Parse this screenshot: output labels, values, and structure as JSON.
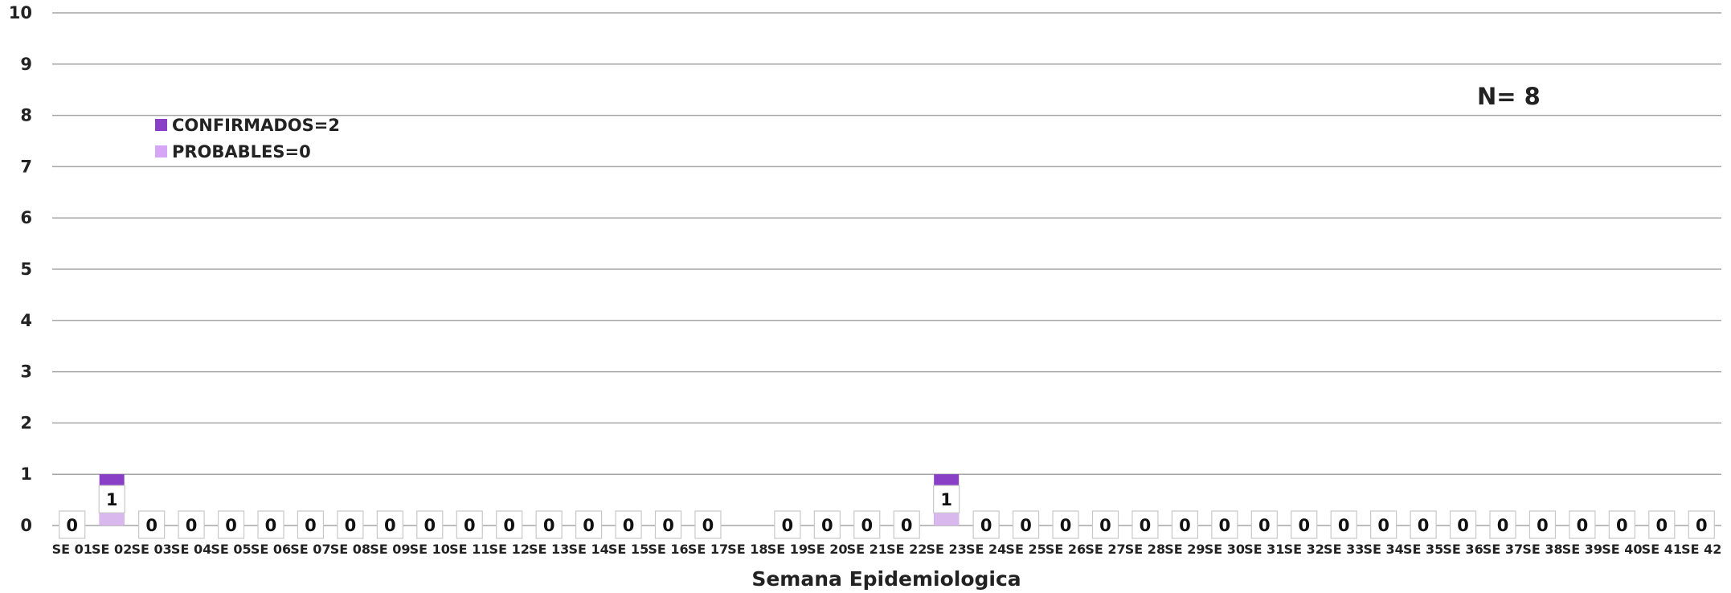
{
  "chart_data": {
    "type": "bar",
    "stacked": true,
    "title": "",
    "xlabel": "Semana Epidemiologica",
    "ylabel": "",
    "ylim": [
      0,
      10
    ],
    "grid": true,
    "legend_position": "top-left",
    "categories": [
      "SE 01",
      "SE 02",
      "SE 03",
      "SE 04",
      "SE 05",
      "SE 06",
      "SE 07",
      "SE 08",
      "SE 09",
      "SE 10",
      "SE 11",
      "SE 12",
      "SE 13",
      "SE 14",
      "SE 15",
      "SE 16",
      "SE 17",
      "SE 18",
      "SE 19",
      "SE 20",
      "SE 21",
      "SE 22",
      "SE 23",
      "SE 24",
      "SE 25",
      "SE 26",
      "SE 27",
      "SE 28",
      "SE 29",
      "SE 30",
      "SE 31",
      "SE 32",
      "SE 33",
      "SE 34",
      "SE 35",
      "SE 36",
      "SE 37",
      "SE 38",
      "SE 39",
      "SE 40",
      "SE 41",
      "SE 42"
    ],
    "series": [
      {
        "name": "CONFIRMADOS=2",
        "color": "#8a3fc7",
        "values": [
          0,
          1,
          0,
          0,
          0,
          0,
          0,
          0,
          0,
          0,
          0,
          0,
          0,
          0,
          0,
          0,
          0,
          0,
          0,
          0,
          0,
          0,
          1,
          0,
          0,
          0,
          0,
          0,
          0,
          0,
          0,
          0,
          0,
          0,
          0,
          0,
          0,
          0,
          0,
          0,
          0,
          0
        ]
      },
      {
        "name": "PROBABLES=0",
        "color": "#d6a5f5",
        "values": [
          0,
          0,
          0,
          0,
          0,
          0,
          0,
          0,
          0,
          0,
          0,
          0,
          0,
          0,
          0,
          0,
          0,
          0,
          0,
          0,
          0,
          0,
          0,
          0,
          0,
          0,
          0,
          0,
          0,
          0,
          0,
          0,
          0,
          0,
          0,
          0,
          0,
          0,
          0,
          0,
          0,
          0
        ]
      }
    ],
    "data_labels": [
      "0",
      "1",
      "0",
      "0",
      "0",
      "0",
      "0",
      "0",
      "0",
      "0",
      "0",
      "0",
      "0",
      "0",
      "0",
      "0",
      "0",
      "",
      "0",
      "0",
      "0",
      "0",
      "1",
      "0",
      "0",
      "0",
      "0",
      "0",
      "0",
      "0",
      "0",
      "0",
      "0",
      "0",
      "0",
      "0",
      "0",
      "0",
      "0",
      "0",
      "0",
      "0"
    ],
    "annotation": "N= 8",
    "yticks": [
      "0",
      "1",
      "2",
      "3",
      "4",
      "5",
      "6",
      "7",
      "8",
      "9",
      "10"
    ]
  }
}
